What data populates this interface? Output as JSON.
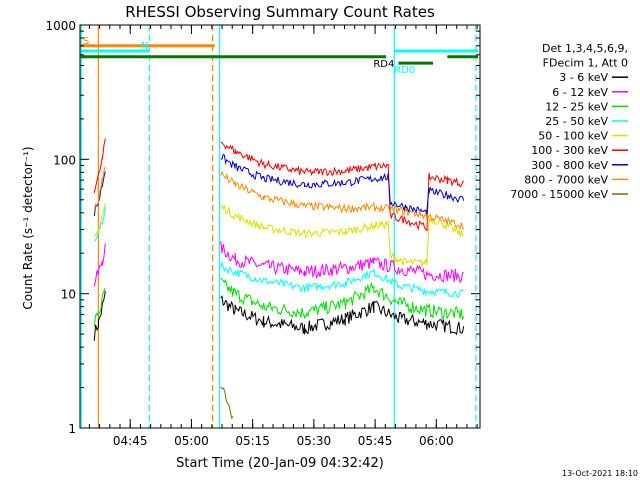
{
  "chart_data": {
    "type": "line",
    "title": "RHESSI Observing Summary Count Rates",
    "xlabel": "Start Time (20-Jan-09 04:32:42)",
    "ylabel": "Count Rate (s⁻¹ detector⁻¹)",
    "footer": "13-Oct-2021 18:10",
    "x_unit": "minutes after 04:32:42",
    "xlim": [
      0,
      98
    ],
    "ylim": [
      1,
      1000
    ],
    "yscale": "log",
    "x_ticks": [
      {
        "v": 12.3,
        "label": "04:45"
      },
      {
        "v": 27.3,
        "label": "05:00"
      },
      {
        "v": 42.3,
        "label": "05:15"
      },
      {
        "v": 57.3,
        "label": "05:30"
      },
      {
        "v": 72.3,
        "label": "05:45"
      },
      {
        "v": 87.3,
        "label": "06:00"
      }
    ],
    "y_ticks": [
      {
        "v": 1,
        "label": "1"
      },
      {
        "v": 10,
        "label": "10"
      },
      {
        "v": 100,
        "label": "100"
      },
      {
        "v": 1000,
        "label": "1000"
      }
    ],
    "legend": {
      "header": [
        "Det 1,3,4,5,6,9,",
        "FDecim 1, Att 0"
      ],
      "placement": "right"
    },
    "series": [
      {
        "name": "3 - 6 keV",
        "color": "#000000",
        "segments": [
          [
            [
              3.5,
              5
            ],
            [
              4.5,
              6
            ],
            [
              5.5,
              8
            ],
            [
              6.2,
              10
            ]
          ],
          [
            [
              34.5,
              9
            ],
            [
              38,
              7.5
            ],
            [
              45,
              6.2
            ],
            [
              55,
              5.5
            ],
            [
              65,
              6.5
            ],
            [
              72,
              8
            ],
            [
              78,
              6.5
            ],
            [
              85,
              6
            ],
            [
              94,
              5.5
            ]
          ]
        ]
      },
      {
        "name": "6 - 12 keV",
        "color": "#ff00ff",
        "segments": [
          [
            [
              3.5,
              12
            ],
            [
              4.5,
              14
            ],
            [
              5.5,
              18
            ],
            [
              6.2,
              22
            ]
          ],
          [
            [
              34.5,
              22
            ],
            [
              38,
              18
            ],
            [
              45,
              16
            ],
            [
              55,
              14.5
            ],
            [
              65,
              15.5
            ],
            [
              72,
              17
            ],
            [
              78,
              15.5
            ],
            [
              85,
              14
            ],
            [
              94,
              13.5
            ]
          ]
        ]
      },
      {
        "name": "12 - 25 keV",
        "color": "#00dd00",
        "segments": [
          [
            [
              3.5,
              6
            ],
            [
              4.5,
              7
            ],
            [
              5.5,
              9
            ],
            [
              6.2,
              11
            ]
          ],
          [
            [
              34.5,
              12
            ],
            [
              38,
              10
            ],
            [
              45,
              8
            ],
            [
              55,
              7.2
            ],
            [
              65,
              8.5
            ],
            [
              72,
              11
            ],
            [
              78,
              8.5
            ],
            [
              85,
              7.5
            ],
            [
              94,
              7
            ]
          ]
        ]
      },
      {
        "name": "25 - 50 keV",
        "color": "#00ffff",
        "segments": [
          [
            [
              3.5,
              24
            ],
            [
              4.5,
              28
            ],
            [
              5.5,
              35
            ],
            [
              6.2,
              42
            ]
          ],
          [
            [
              34.5,
              16
            ],
            [
              38,
              14.5
            ],
            [
              45,
              12.5
            ],
            [
              55,
              11
            ],
            [
              65,
              12
            ],
            [
              72,
              14.5
            ],
            [
              78,
              11.5
            ],
            [
              85,
              10.5
            ],
            [
              94,
              10
            ]
          ]
        ]
      },
      {
        "name": "50 - 100 keV",
        "color": "#dddd00",
        "segments": [
          [
            [
              3.5,
              25
            ],
            [
              4.5,
              30
            ],
            [
              5.5,
              38
            ],
            [
              6.2,
              46
            ]
          ],
          [
            [
              34.5,
              45
            ],
            [
              38,
              38
            ],
            [
              45,
              31
            ],
            [
              55,
              28
            ],
            [
              65,
              29
            ],
            [
              72,
              32
            ],
            [
              75.5,
              33
            ],
            [
              76,
              19
            ],
            [
              80,
              17
            ],
            [
              85,
              17
            ],
            [
              85.5,
              37
            ],
            [
              90,
              32
            ],
            [
              94,
              27
            ]
          ]
        ]
      },
      {
        "name": "100 - 300 keV",
        "color": "#ff0000",
        "segments": [
          [
            [
              3.5,
              60
            ],
            [
              4.5,
              75
            ],
            [
              5.5,
              100
            ],
            [
              6.2,
              140
            ]
          ],
          [
            [
              34.5,
              135
            ],
            [
              38,
              115
            ],
            [
              45,
              92
            ],
            [
              55,
              80
            ],
            [
              65,
              82
            ],
            [
              72,
              88
            ],
            [
              75.5,
              90
            ],
            [
              76,
              38
            ],
            [
              80,
              35
            ],
            [
              85,
              31
            ],
            [
              85.5,
              74
            ],
            [
              90,
              70
            ],
            [
              94,
              66
            ]
          ]
        ]
      },
      {
        "name": "300 - 800 keV",
        "color": "#0000cc",
        "segments": [
          [
            [
              3.5,
              40
            ],
            [
              4.5,
              48
            ],
            [
              5.5,
              65
            ],
            [
              6.2,
              85
            ]
          ],
          [
            [
              34.5,
              105
            ],
            [
              38,
              88
            ],
            [
              45,
              72
            ],
            [
              55,
              65
            ],
            [
              65,
              67
            ],
            [
              72,
              72
            ],
            [
              75.5,
              74
            ],
            [
              76,
              48
            ],
            [
              80,
              44
            ],
            [
              85,
              40
            ],
            [
              85.5,
              58
            ],
            [
              90,
              54
            ],
            [
              94,
              50
            ]
          ]
        ]
      },
      {
        "name": "800 - 7000 keV",
        "color": "#ff8800",
        "segments": [
          [
            [
              3.5,
              42
            ],
            [
              4.5,
              50
            ],
            [
              5.5,
              70
            ],
            [
              6.2,
              92
            ]
          ],
          [
            [
              34.5,
              78
            ],
            [
              38,
              65
            ],
            [
              45,
              52
            ],
            [
              55,
              45
            ],
            [
              65,
              43
            ],
            [
              72,
              44
            ],
            [
              78,
              42
            ],
            [
              85,
              38
            ],
            [
              94,
              32
            ]
          ]
        ]
      },
      {
        "name": "7000 - 15000 keV",
        "color": "#886600",
        "segments": [
          [
            [
              34.5,
              2
            ],
            [
              35.5,
              1.8
            ],
            [
              36.5,
              1.4
            ],
            [
              37.5,
              1.2
            ]
          ]
        ]
      }
    ],
    "attenuator_bars": [
      {
        "label": "S",
        "x0": 0.2,
        "x1": 33,
        "y": 700,
        "color": "#ff8800"
      },
      {
        "label": "N",
        "x0": 0.2,
        "x1": 17,
        "y": 640,
        "color": "#00ffff"
      },
      {
        "label": "",
        "x0": 0.2,
        "x1": 75,
        "y": 580,
        "color": "#007700"
      },
      {
        "label": "RD4",
        "x0": 78,
        "x1": 86.5,
        "y": 520,
        "color": "#007700"
      },
      {
        "label": "",
        "x0": 90,
        "x1": 97.5,
        "y": 580,
        "color": "#007700"
      },
      {
        "label": "RD0",
        "x0": 77,
        "x1": 97.5,
        "y": 640,
        "color": "#00ffff"
      }
    ],
    "markers": [
      {
        "x": 0.3,
        "color": "#00ffff",
        "style": "solid"
      },
      {
        "x": 4.5,
        "color": "#ff8800",
        "style": "solid"
      },
      {
        "x": 17,
        "color": "#00ffff",
        "style": "dashed"
      },
      {
        "x": 32.5,
        "color": "#ff8800",
        "style": "dashed"
      },
      {
        "x": 34.2,
        "color": "#00ffff",
        "style": "solid"
      },
      {
        "x": 77,
        "color": "#00ffff",
        "style": "solid"
      },
      {
        "x": 97,
        "color": "#00ffff",
        "style": "dashed"
      }
    ]
  }
}
